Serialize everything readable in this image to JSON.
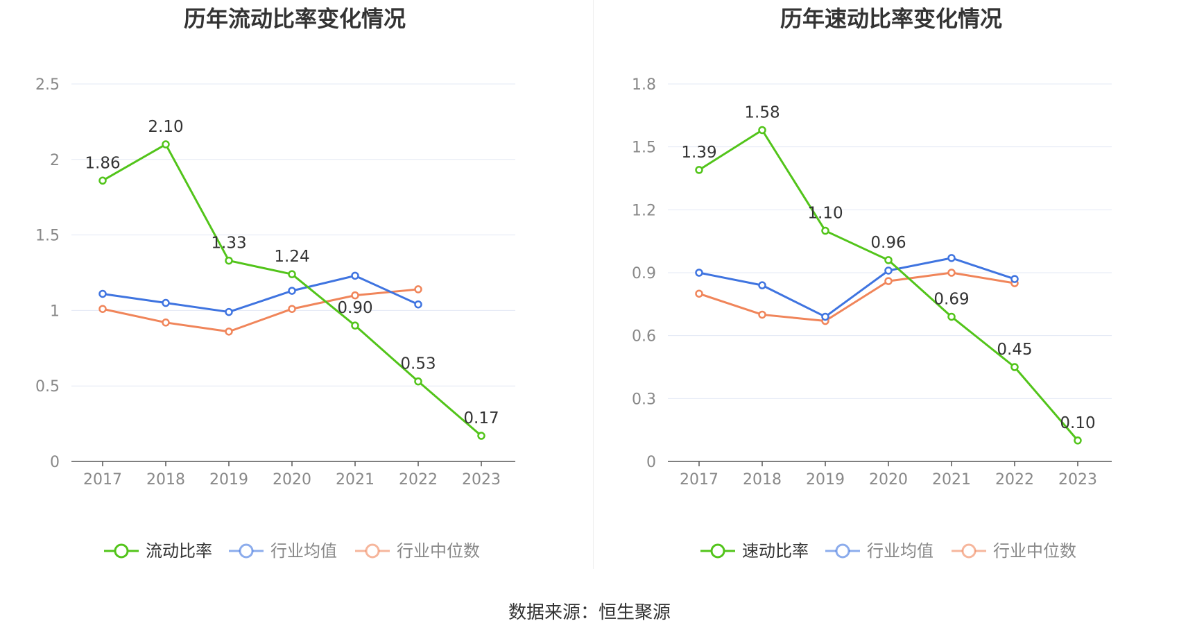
{
  "source": "数据来源：恒生聚源",
  "colors": {
    "main": "#52c41a",
    "avg": "#3f74e0",
    "median": "#f0855a",
    "grid": "#e3e8f4",
    "axis": "#555555",
    "label": "#333333",
    "tick": "#888888"
  },
  "chart_data": [
    {
      "type": "line",
      "title": "历年流动比率变化情况",
      "categories": [
        "2017",
        "2018",
        "2019",
        "2020",
        "2021",
        "2022",
        "2023"
      ],
      "ylim": [
        0,
        2.5
      ],
      "yticks": [
        0,
        0.5,
        1,
        1.5,
        2,
        2.5
      ],
      "ytick_labels": [
        "0",
        "0.5",
        "1",
        "1.5",
        "2",
        "2.5"
      ],
      "grid": true,
      "legend_position": "bottom",
      "series": [
        {
          "name": "流动比率",
          "color": "#52c41a",
          "values": [
            1.86,
            2.1,
            1.33,
            1.24,
            0.9,
            0.53,
            0.17
          ],
          "data_labels": [
            "1.86",
            "2.10",
            "1.33",
            "1.24",
            "0.90",
            "0.53",
            "0.17"
          ]
        },
        {
          "name": "行业均值",
          "color": "#3f74e0",
          "values": [
            1.11,
            1.05,
            0.99,
            1.13,
            1.23,
            1.04,
            null
          ]
        },
        {
          "name": "行业中位数",
          "color": "#f0855a",
          "values": [
            1.01,
            0.92,
            0.86,
            1.01,
            1.1,
            1.14,
            null
          ]
        }
      ]
    },
    {
      "type": "line",
      "title": "历年速动比率变化情况",
      "categories": [
        "2017",
        "2018",
        "2019",
        "2020",
        "2021",
        "2022",
        "2023"
      ],
      "ylim": [
        0,
        1.8
      ],
      "yticks": [
        0,
        0.3,
        0.6,
        0.9,
        1.2,
        1.5,
        1.8
      ],
      "ytick_labels": [
        "0",
        "0.3",
        "0.6",
        "0.9",
        "1.2",
        "1.5",
        "1.8"
      ],
      "grid": true,
      "legend_position": "bottom",
      "series": [
        {
          "name": "速动比率",
          "color": "#52c41a",
          "values": [
            1.39,
            1.58,
            1.1,
            0.96,
            0.69,
            0.45,
            0.1
          ],
          "data_labels": [
            "1.39",
            "1.58",
            "1.10",
            "0.96",
            "0.69",
            "0.45",
            "0.10"
          ]
        },
        {
          "name": "行业均值",
          "color": "#3f74e0",
          "values": [
            0.9,
            0.84,
            0.69,
            0.91,
            0.97,
            0.87,
            null
          ]
        },
        {
          "name": "行业中位数",
          "color": "#f0855a",
          "values": [
            0.8,
            0.7,
            0.67,
            0.86,
            0.9,
            0.85,
            null
          ]
        }
      ]
    }
  ]
}
